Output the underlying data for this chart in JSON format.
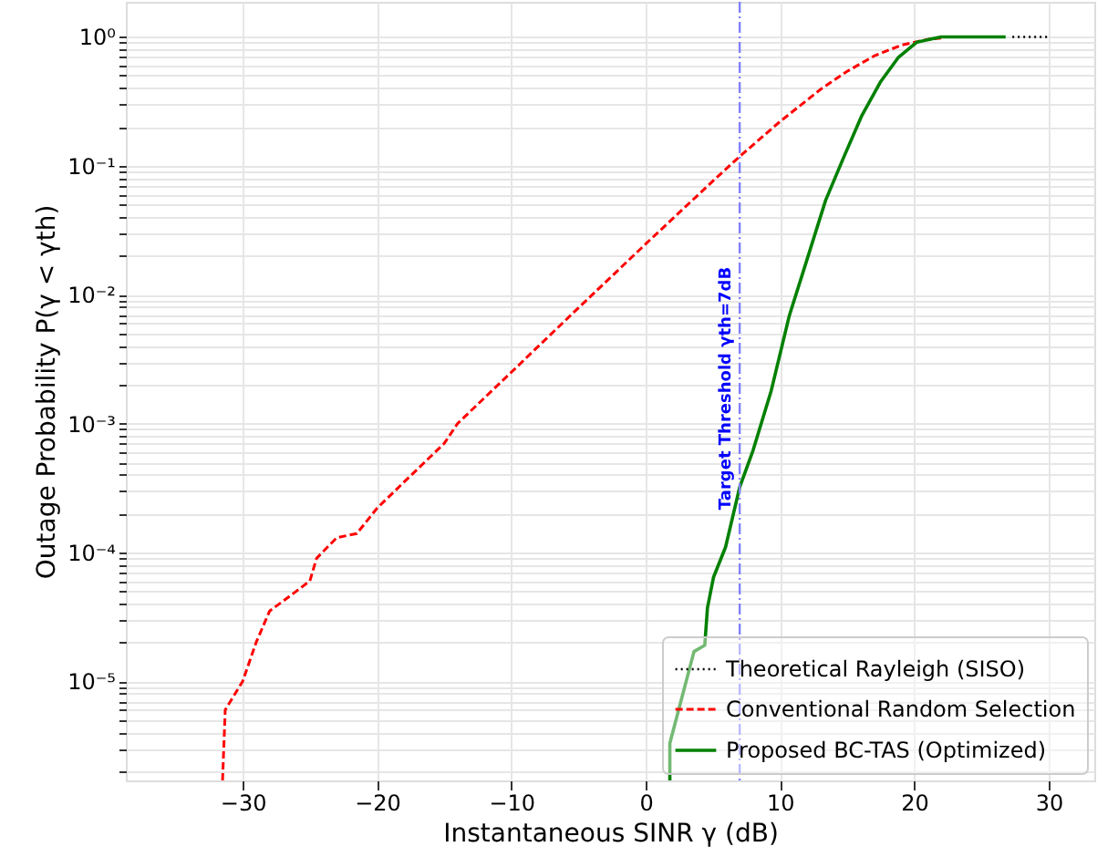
{
  "chart_data": {
    "type": "line",
    "xlabel": "Instantaneous SINR γ (dB)",
    "ylabel": "Outage Probability P(γ < γth)",
    "log": "y",
    "grid": true,
    "legend": "bottom right",
    "xlim": [
      -38.7,
      33.4
    ],
    "ylim": [
      1.7e-06,
      1.87
    ],
    "xticks": [
      -30,
      -20,
      -10,
      0,
      10,
      20,
      30
    ],
    "yticks": [
      {
        "value": 1e-05,
        "label": "10⁻⁵"
      },
      {
        "value": 0.0001,
        "label": "10⁻⁴"
      },
      {
        "value": 0.001,
        "label": "10⁻³"
      },
      {
        "value": 0.01,
        "label": "10⁻²"
      },
      {
        "value": 0.1,
        "label": "10⁻¹"
      },
      {
        "value": 1,
        "label": "10⁰"
      },
      {
        "value": 2e-06,
        "label": null
      },
      {
        "value": 3e-06,
        "label": null
      },
      {
        "value": 4e-06,
        "label": null
      },
      {
        "value": 5e-06,
        "label": null
      },
      {
        "value": 6e-06,
        "label": null
      },
      {
        "value": 7e-06,
        "label": null
      },
      {
        "value": 8e-06,
        "label": null
      },
      {
        "value": 9e-06,
        "label": null
      },
      {
        "value": 2e-05,
        "label": null
      },
      {
        "value": 3e-05,
        "label": null
      },
      {
        "value": 4e-05,
        "label": null
      },
      {
        "value": 5e-05,
        "label": null
      },
      {
        "value": 6e-05,
        "label": null
      },
      {
        "value": 7e-05,
        "label": null
      },
      {
        "value": 8e-05,
        "label": null
      },
      {
        "value": 9e-05,
        "label": null
      },
      {
        "value": 0.0002,
        "label": null
      },
      {
        "value": 0.0003,
        "label": null
      },
      {
        "value": 0.0004,
        "label": null
      },
      {
        "value": 0.0005,
        "label": null
      },
      {
        "value": 0.0006,
        "label": null
      },
      {
        "value": 0.0007,
        "label": null
      },
      {
        "value": 0.0008,
        "label": null
      },
      {
        "value": 0.0009,
        "label": null
      },
      {
        "value": 0.002,
        "label": null
      },
      {
        "value": 0.003,
        "label": null
      },
      {
        "value": 0.004,
        "label": null
      },
      {
        "value": 0.005,
        "label": null
      },
      {
        "value": 0.006,
        "label": null
      },
      {
        "value": 0.007,
        "label": null
      },
      {
        "value": 0.008,
        "label": null
      },
      {
        "value": 0.009,
        "label": null
      },
      {
        "value": 0.02,
        "label": null
      },
      {
        "value": 0.03,
        "label": null
      },
      {
        "value": 0.04,
        "label": null
      },
      {
        "value": 0.05,
        "label": null
      },
      {
        "value": 0.06,
        "label": null
      },
      {
        "value": 0.07,
        "label": null
      },
      {
        "value": 0.08,
        "label": null
      },
      {
        "value": 0.09,
        "label": null
      },
      {
        "value": 0.2,
        "label": null
      },
      {
        "value": 0.3,
        "label": null
      },
      {
        "value": 0.4,
        "label": null
      },
      {
        "value": 0.5,
        "label": null
      },
      {
        "value": 0.6,
        "label": null
      },
      {
        "value": 0.7,
        "label": null
      },
      {
        "value": 0.8,
        "label": null
      },
      {
        "value": 0.9,
        "label": null
      }
    ],
    "series": [
      {
        "name": "Theoretical Rayleigh (SISO)",
        "color": "#000000",
        "line_style": "dotted",
        "x": [
          27.3,
          30
        ],
        "values": [
          1,
          1
        ]
      },
      {
        "name": "Conventional Random Selection",
        "color": "#ff0000",
        "line_style": "dashed",
        "x": [
          -31.5,
          -31.3,
          -30,
          -29,
          -28,
          -26,
          -25,
          -24.5,
          -23,
          -21.5,
          -20,
          -18,
          -15,
          -14,
          -10,
          -5,
          0,
          5,
          7,
          10,
          13,
          15,
          17,
          19,
          21,
          22
        ],
        "values": [
          1.7e-06,
          6e-06,
          1e-05,
          2e-05,
          3.5e-05,
          5e-05,
          6e-05,
          9e-05,
          0.00013,
          0.00014,
          0.00022,
          0.00035,
          0.0007,
          0.001,
          0.0025,
          0.0079,
          0.0247,
          0.076,
          0.118,
          0.22,
          0.39,
          0.54,
          0.71,
          0.86,
          0.956,
          0.98
        ]
      },
      {
        "name": "Proposed BC-TAS (Optimized)",
        "color": "#008000",
        "line_style": "solid",
        "x": [
          1.8,
          1.8,
          3.6,
          4.4,
          4.6,
          5.05,
          5.95,
          7,
          8,
          9.35,
          10.7,
          12.1,
          13.4,
          14.8,
          16.1,
          17.5,
          18.8,
          20.2,
          22,
          26.8
        ],
        "values": [
          1.7e-06,
          3.3e-06,
          1.7e-05,
          1.9e-05,
          3.7e-05,
          6.4e-05,
          0.00011,
          0.00032,
          0.00062,
          0.0018,
          0.0069,
          0.02,
          0.054,
          0.12,
          0.246,
          0.45,
          0.69,
          0.91,
          1,
          1
        ]
      }
    ],
    "ref_lines": [
      {
        "axis": "x",
        "value": 7,
        "label": "Target Threshold γth=7dB",
        "color": "#8080ff",
        "line_style": "dashdot"
      }
    ]
  }
}
